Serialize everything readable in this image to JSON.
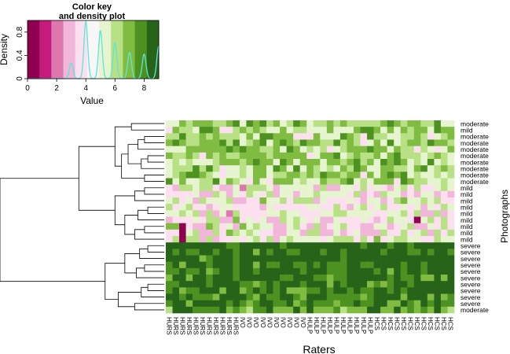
{
  "color_key": {
    "title_line1": "Color key",
    "title_line2": "and density plot",
    "xlabel": "Value",
    "ylabel": "Density",
    "x_ticks": [
      "0",
      "2",
      "4",
      "6",
      "8"
    ],
    "y_ticks": [
      "0",
      "0.4",
      "0.8"
    ],
    "x_range": [
      0,
      9
    ],
    "y_range": [
      0,
      1.0
    ],
    "palette": [
      "#8e0152",
      "#c51b7d",
      "#de77ae",
      "#f1b6da",
      "#fde0ef",
      "#f7f7f7",
      "#e6f5d0",
      "#b8e186",
      "#7fbc41",
      "#4d9221",
      "#276419"
    ],
    "density_color": "#5ce6d8",
    "density_peaks": [
      {
        "x": 3.0,
        "h": 0.27
      },
      {
        "x": 4.0,
        "h": 0.98
      },
      {
        "x": 5.0,
        "h": 0.82
      },
      {
        "x": 6.0,
        "h": 0.62
      },
      {
        "x": 7.0,
        "h": 0.45
      },
      {
        "x": 8.0,
        "h": 0.42
      },
      {
        "x": 9.0,
        "h": 0.56
      }
    ]
  },
  "chart_data": {
    "type": "heatmap",
    "xlabel": "Raters",
    "ylabel": "Photographs",
    "value_range": [
      0,
      9
    ],
    "row_labels": [
      "moderate",
      "mild",
      "moderate",
      "moderate",
      "moderate",
      "moderate",
      "moderate",
      "moderate",
      "moderate",
      "moderate",
      "mild",
      "mild",
      "mild",
      "mild",
      "mild",
      "mild",
      "mild",
      "mild",
      "mild",
      "severe",
      "severe",
      "severe",
      "severe",
      "severe",
      "severe",
      "severe",
      "severe",
      "severe",
      "severe",
      "moderate"
    ],
    "col_labels": [
      "HURS",
      "HURS",
      "HURS",
      "HURS",
      "HURS",
      "HURS",
      "HURS",
      "HURS",
      "HURS",
      "HURS",
      "HURS",
      "IVO",
      "IVO",
      "IVO",
      "IVO",
      "IVO",
      "IVO",
      "IVO",
      "IVO",
      "IVO",
      "IVO",
      "HULP",
      "HULP",
      "HULP",
      "HULP",
      "HULP",
      "HULP",
      "HULP",
      "HULP",
      "HULP",
      "HULP",
      "HCS",
      "HCS",
      "HCS",
      "HCS",
      "HCS",
      "HCS",
      "HCS",
      "HCS",
      "HCS",
      "HCS",
      "HCS",
      "HCS"
    ],
    "row_group_means": [
      6.2,
      6.0,
      6.2,
      6.3,
      6.2,
      6.1,
      6.2,
      6.1,
      6.2,
      6.2,
      4.6,
      4.5,
      4.6,
      4.4,
      4.5,
      4.6,
      4.8,
      4.5,
      4.9,
      9.4,
      9.2,
      9.3,
      9.0,
      9.2,
      8.8,
      8.9,
      8.6,
      8.3,
      8.4,
      8.1
    ],
    "special_cells": [
      {
        "row": 15,
        "col": 37,
        "value": 0
      },
      {
        "row": 16,
        "col": 2,
        "value": 0
      },
      {
        "row": 17,
        "col": 2,
        "value": 0
      },
      {
        "row": 18,
        "col": 2,
        "value": 0
      }
    ],
    "dendrogram_order": "rows 0-9 moderate cluster, rows 10-18 mild cluster, rows 19-29 severe cluster"
  }
}
